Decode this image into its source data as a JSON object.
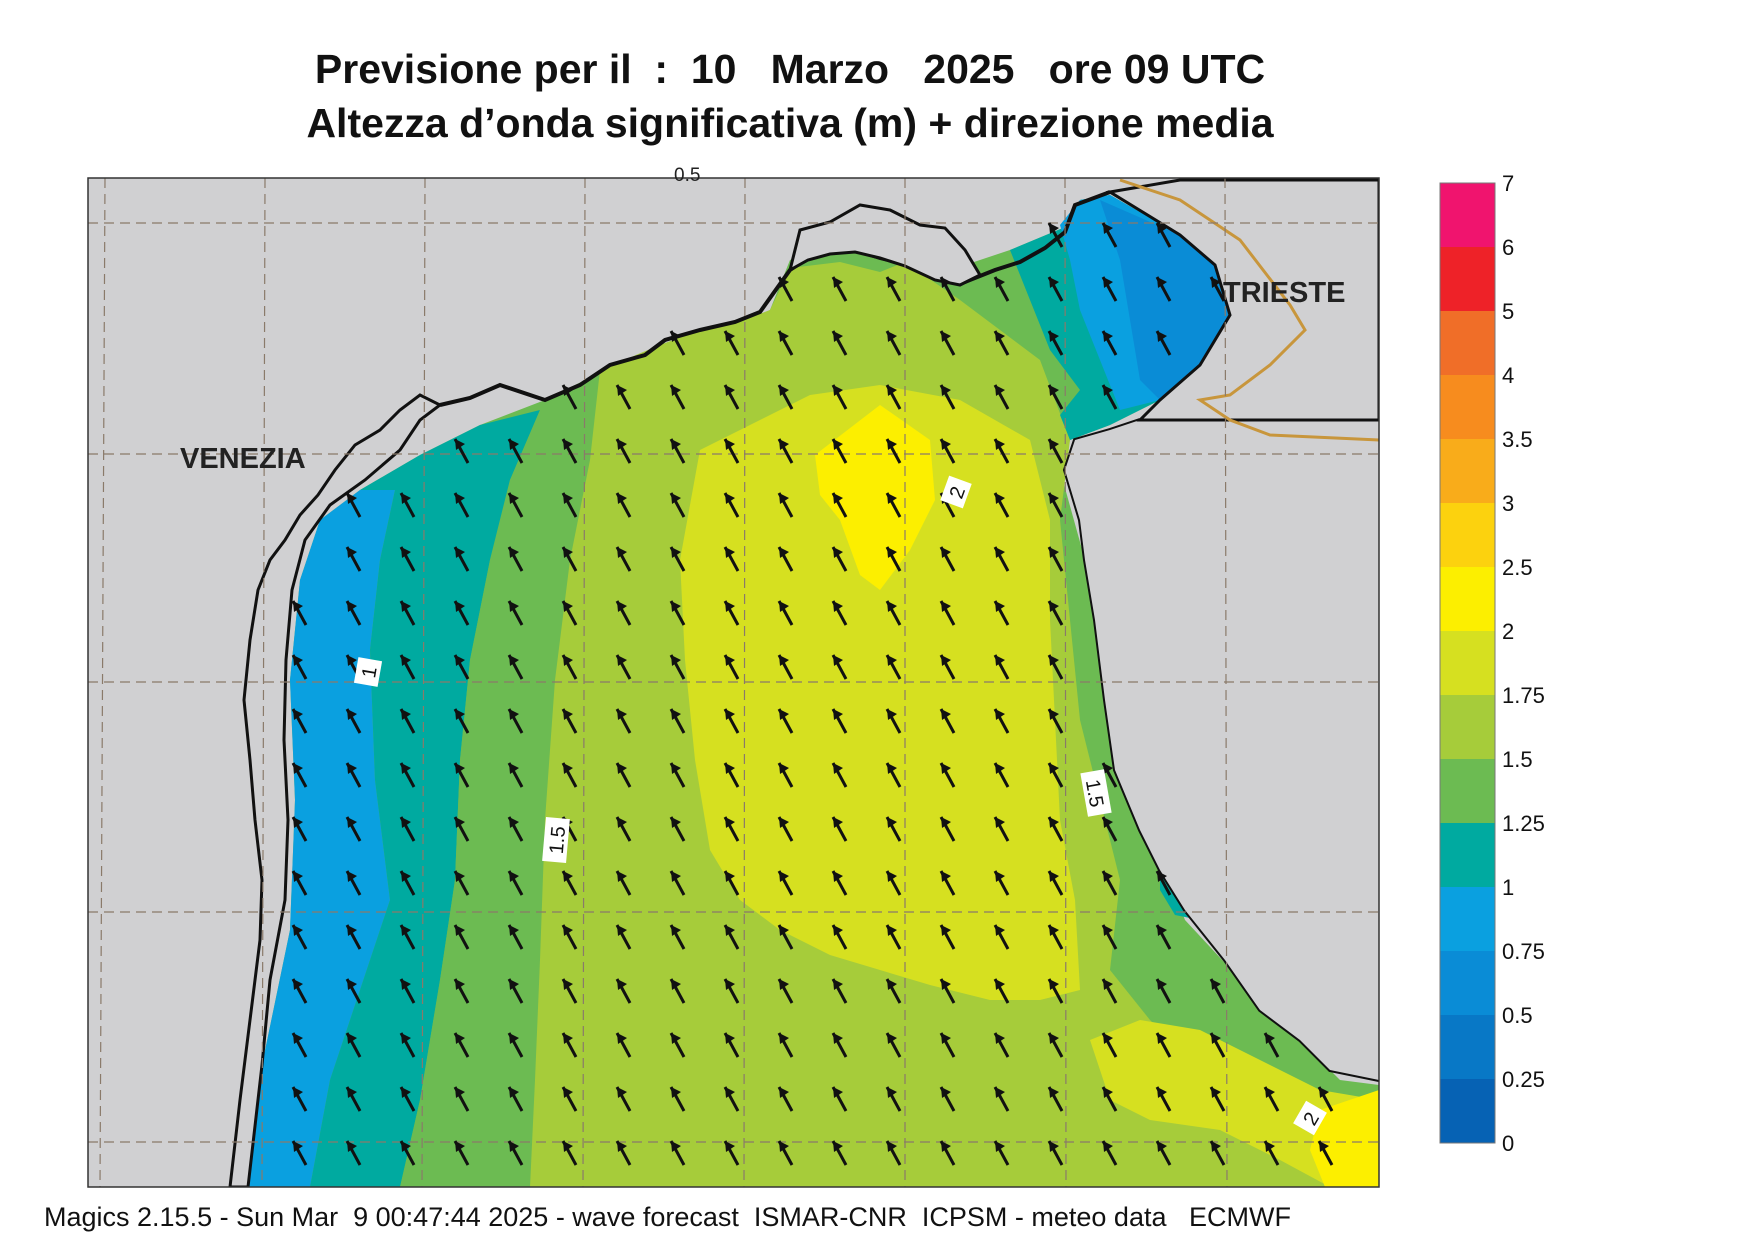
{
  "header": {
    "title_line1": "Previsione per il  :  10   Marzo   2025   ore 09 UTC",
    "title_line2": "Altezza d’onda significativa (m) + direzione media"
  },
  "map": {
    "place_labels": [
      "VENEZIA",
      "TRIESTE"
    ],
    "contour_labels": [
      "0.5",
      "2",
      "1",
      "1.5",
      "1.5",
      "2"
    ],
    "land_color": "#d0d0d2",
    "coastline_color": "#111111",
    "border_color": "#c8963c",
    "arrow_color": "#111111"
  },
  "legend": {
    "ticks": [
      "7",
      "6",
      "5",
      "4",
      "3.5",
      "3",
      "2.5",
      "2",
      "1.75",
      "1.5",
      "1.25",
      "1",
      "0.75",
      "0.5",
      "0.25",
      "0"
    ],
    "colors": [
      "#f0146e",
      "#ee2228",
      "#f06e28",
      "#f78c1e",
      "#f9ac1a",
      "#fcd20e",
      "#fcef00",
      "#d6e020",
      "#a6cc3a",
      "#6cbb52",
      "#00aaa0",
      "#0aa0e0",
      "#0a8cd6",
      "#0878c6",
      "#0662b4"
    ]
  },
  "footer": {
    "text": "Magics 2.15.5 - Sun Mar  9 00:47:44 2025 - wave forecast  ISMAR-CNR  ICPSM - meteo data   ECMWF"
  }
}
